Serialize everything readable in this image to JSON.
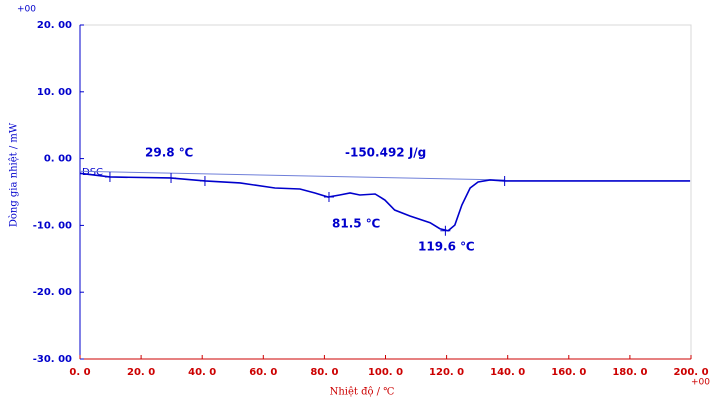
{
  "chart_data": {
    "type": "line",
    "xlabel": "Nhiệt độ / ℃",
    "ylabel": "Dòng gia nhiệt / mW",
    "x_exponent": "+00",
    "y_exponent": "+00",
    "curve_label": "DSC",
    "annotations": [
      "29.8 ℃",
      "-150.492 J/g",
      "81.5 ℃",
      "119.6 ℃"
    ],
    "xlim": [
      0,
      200
    ],
    "ylim": [
      -30,
      20
    ],
    "xticks": [
      {
        "value": 0,
        "label": "0. 0"
      },
      {
        "value": 20,
        "label": "20. 0"
      },
      {
        "value": 40,
        "label": "40. 0"
      },
      {
        "value": 60,
        "label": "60. 0"
      },
      {
        "value": 80,
        "label": "80. 0"
      },
      {
        "value": 100,
        "label": "100. 0"
      },
      {
        "value": 120,
        "label": "120. 0"
      },
      {
        "value": 140,
        "label": "140. 0"
      },
      {
        "value": 160,
        "label": "160. 0"
      },
      {
        "value": 180,
        "label": "180. 0"
      },
      {
        "value": 200,
        "label": "200. 0"
      }
    ],
    "yticks": [
      {
        "value": 20,
        "label": "20. 00"
      },
      {
        "value": 10,
        "label": "10. 00"
      },
      {
        "value": 0,
        "label": "0. 00"
      },
      {
        "value": -10,
        "label": "-10. 00"
      },
      {
        "value": -20,
        "label": "-20. 00"
      },
      {
        "value": -30,
        "label": "-30. 00"
      }
    ],
    "series": [
      {
        "color": "#0000cc",
        "x": [
          0,
          9.8,
          29.5,
          40.9,
          52.4,
          63.8,
          72,
          76.9,
          81.2,
          85,
          88.4,
          91.6,
          96.6,
          99.8,
          103,
          108,
          114.6,
          117.8,
          120.5,
          122.7,
          125,
          127.7,
          130.3,
          134.2,
          139,
          160.4,
          199.7
        ],
        "values": [
          -2.2,
          -2.75,
          -2.9,
          -3.35,
          -3.65,
          -4.4,
          -4.55,
          -5.15,
          -5.75,
          -5.45,
          -5.15,
          -5.45,
          -5.3,
          -6.2,
          -7.7,
          -8.6,
          -9.6,
          -10.5,
          -10.8,
          -9.95,
          -6.95,
          -4.4,
          -3.5,
          -3.2,
          -3.35,
          -3.35,
          -3.35
        ]
      }
    ],
    "baseline": {
      "color": "#6f7fd9",
      "x": [
        0,
        139
      ],
      "values": [
        -1.9,
        -3.2
      ]
    },
    "markers": {
      "x": [
        9.8,
        29.8,
        40.9,
        81.5,
        119.6,
        139
      ],
      "values": [
        -2.75,
        -2.9,
        -3.35,
        -5.75,
        -10.8,
        -3.35
      ]
    }
  }
}
